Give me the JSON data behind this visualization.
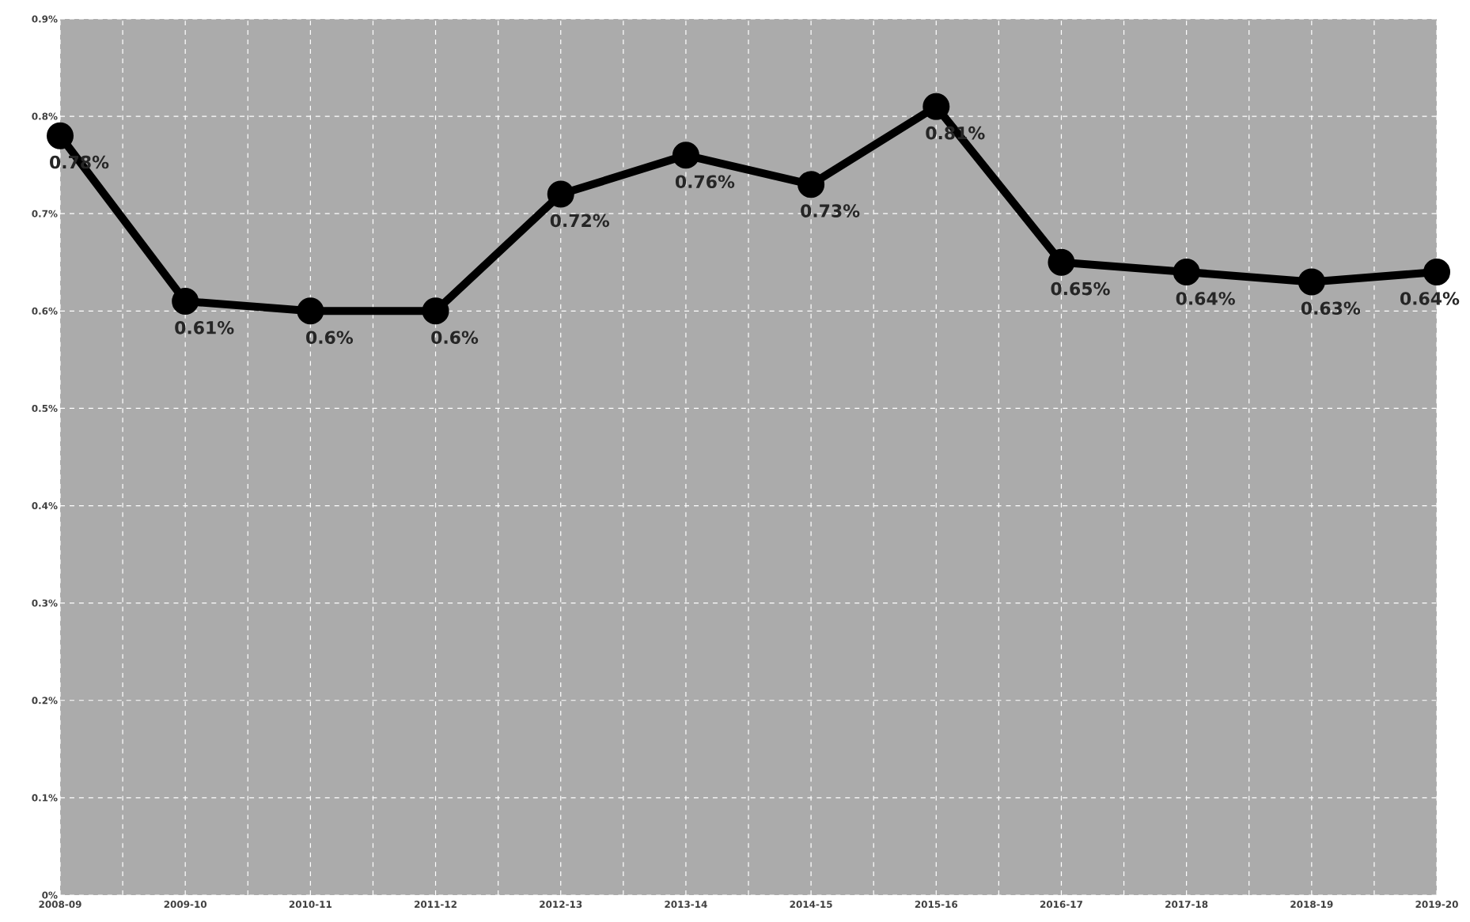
{
  "chart_data": {
    "type": "line",
    "categories": [
      "2008-09",
      "2009-10",
      "2010-11",
      "2011-12",
      "2012-13",
      "2013-14",
      "2014-15",
      "2015-16",
      "2016-17",
      "2017-18",
      "2018-19",
      "2019-20"
    ],
    "series": [
      {
        "color": "#000000",
        "values": [
          0.78,
          0.61,
          0.6,
          0.6,
          0.72,
          0.76,
          0.73,
          0.81,
          0.65,
          0.64,
          0.63,
          0.64
        ],
        "value_labels": [
          "0.78%",
          "0.61%",
          "0.6%",
          "0.6%",
          "0.72%",
          "0.76%",
          "0.73%",
          "0.81%",
          "0.65%",
          "0.64%",
          "0.63%",
          "0.64%"
        ]
      }
    ],
    "ylim": [
      0,
      0.9
    ],
    "yticks": [
      {
        "value": 0,
        "label": "0%"
      },
      {
        "value": 0.1,
        "label": "0.1%"
      },
      {
        "value": 0.2,
        "label": "0.2%"
      },
      {
        "value": 0.3,
        "label": "0.3%"
      },
      {
        "value": 0.4,
        "label": "0.4%"
      },
      {
        "value": 0.5,
        "label": "0.5%"
      },
      {
        "value": 0.6,
        "label": "0.6%"
      },
      {
        "value": 0.7,
        "label": "0.7%"
      },
      {
        "value": 0.8,
        "label": "0.8%"
      },
      {
        "value": 0.9,
        "label": "0.9%"
      }
    ],
    "grid": true,
    "marker": "circle",
    "line_style": "solid"
  }
}
